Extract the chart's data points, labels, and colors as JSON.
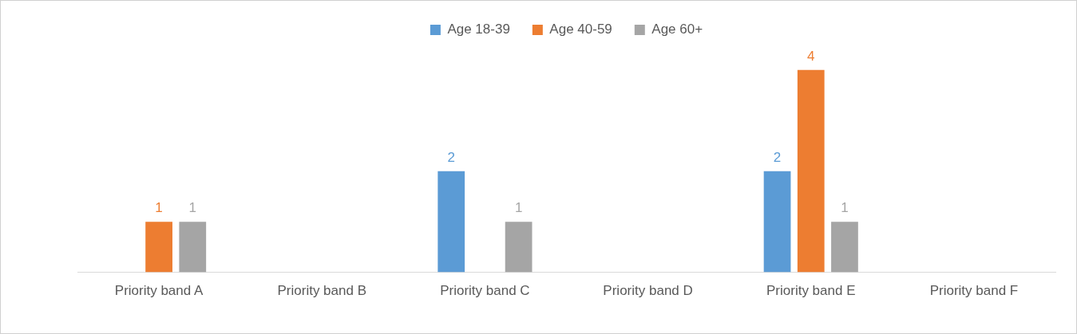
{
  "chart_data": {
    "type": "bar",
    "categories": [
      "Priority band A",
      "Priority band B",
      "Priority band C",
      "Priority band D",
      "Priority band E",
      "Priority band F"
    ],
    "series": [
      {
        "name": "Age 18-39",
        "color": "#5b9bd5",
        "values": [
          null,
          null,
          2,
          null,
          2,
          null
        ]
      },
      {
        "name": "Age 40-59",
        "color": "#ed7d31",
        "values": [
          1,
          null,
          null,
          null,
          4,
          null
        ]
      },
      {
        "name": "Age 60+",
        "color": "#a5a5a5",
        "values": [
          1,
          null,
          1,
          null,
          1,
          null
        ]
      }
    ],
    "data_labels": true,
    "legend": "top",
    "grid": false
  }
}
